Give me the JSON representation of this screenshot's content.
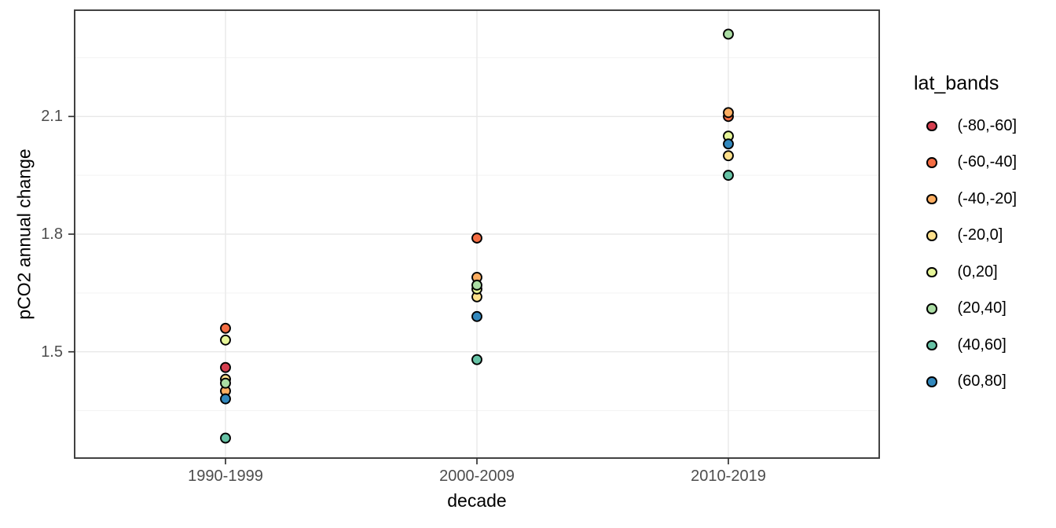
{
  "chart_data": {
    "type": "scatter",
    "title": "",
    "xlabel": "decade",
    "ylabel": "pCO2 annual change",
    "legend_title": "lat_bands",
    "legend_position": "right",
    "categories": [
      "1990-1999",
      "2000-2009",
      "2010-2019"
    ],
    "ylim": [
      1.229,
      2.371
    ],
    "y_ticks": [
      1.5,
      1.8,
      2.1
    ],
    "y_tick_labels": [
      "1.5",
      "1.8",
      "2.1"
    ],
    "y_minor_ticks": [
      1.35,
      1.65,
      1.95,
      2.25
    ],
    "grid": true,
    "series": [
      {
        "name": "(-80,-60]",
        "color": "#D53E4F",
        "values": [
          1.46,
          null,
          null
        ]
      },
      {
        "name": "(-60,-40]",
        "color": "#F46D43",
        "values": [
          1.56,
          1.79,
          2.1
        ]
      },
      {
        "name": "(-40,-20]",
        "color": "#FDAE61",
        "values": [
          1.4,
          1.69,
          2.11
        ]
      },
      {
        "name": "(-20,0]",
        "color": "#FEE08B",
        "values": [
          1.43,
          1.64,
          2.0
        ]
      },
      {
        "name": "(0,20]",
        "color": "#E6F598",
        "values": [
          1.53,
          1.66,
          2.05
        ]
      },
      {
        "name": "(20,40]",
        "color": "#ABDDA4",
        "values": [
          1.42,
          1.67,
          2.31
        ]
      },
      {
        "name": "(40,60]",
        "color": "#66C2A5",
        "values": [
          1.28,
          1.48,
          1.95
        ]
      },
      {
        "name": "(60,80]",
        "color": "#3288BD",
        "values": [
          1.38,
          1.59,
          2.03
        ]
      }
    ],
    "style": {
      "point_outline": "#000000",
      "grid_major": "#E8E8E8",
      "grid_minor": "#F3F3F3",
      "panel_border": "#383838",
      "tick_mark_color": "#333333",
      "tick_label_color": "#4D4D4D",
      "panel_background": "#FFFFFF"
    }
  }
}
